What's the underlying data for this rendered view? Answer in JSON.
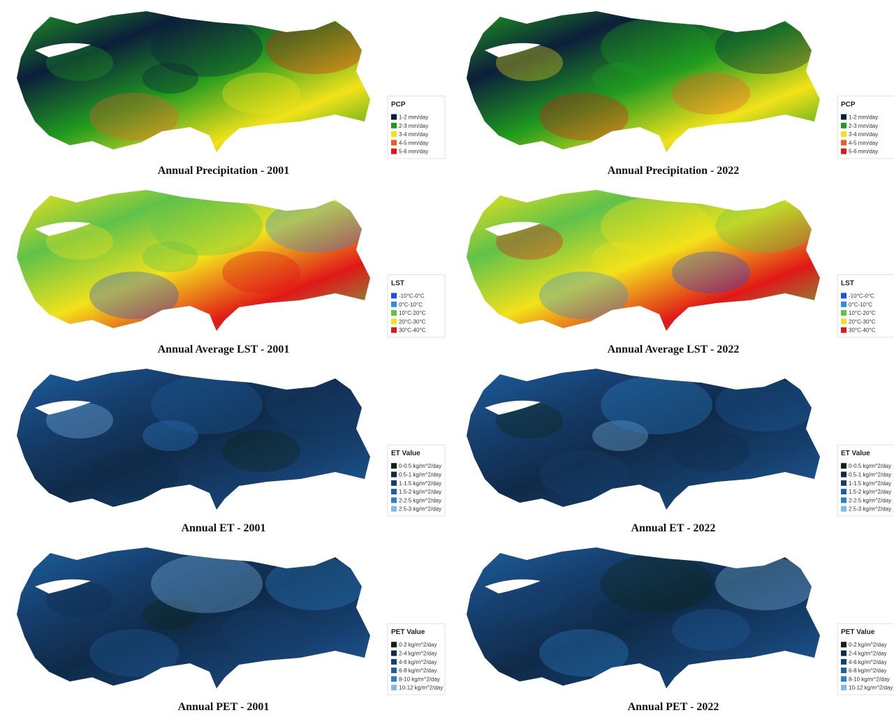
{
  "panels": [
    {
      "caption": "Annual Precipitation - 2001",
      "legend": {
        "title": "PCP",
        "items": [
          {
            "label": "1-2 mm/day",
            "color": "#0b1e3a"
          },
          {
            "label": "2-3 mm/day",
            "color": "#1f9a1f"
          },
          {
            "label": "3-4 mm/day",
            "color": "#f2e21a"
          },
          {
            "label": "4-5 mm/day",
            "color": "#f05a28"
          },
          {
            "label": "5-6 mm/day",
            "color": "#e01818"
          }
        ]
      }
    },
    {
      "caption": "Annual Precipitation - 2022",
      "legend": {
        "title": "PCP",
        "items": [
          {
            "label": "1-2 mm/day",
            "color": "#0b1e3a"
          },
          {
            "label": "2-3 mm/day",
            "color": "#1f9a1f"
          },
          {
            "label": "3-4 mm/day",
            "color": "#f2e21a"
          },
          {
            "label": "4-5 mm/day",
            "color": "#f05a28"
          },
          {
            "label": "5-6 mm/day",
            "color": "#e01818"
          }
        ]
      }
    },
    {
      "caption": "Annual Average LST - 2001",
      "legend": {
        "title": "LST",
        "items": [
          {
            "label": "-10°C-0°C",
            "color": "#1f4fe0"
          },
          {
            "label": "0°C-10°C",
            "color": "#2f8de0"
          },
          {
            "label": "10°C-20°C",
            "color": "#5fc24a"
          },
          {
            "label": "20°C-30°C",
            "color": "#f2e21a"
          },
          {
            "label": "30°C-40°C",
            "color": "#e01818"
          }
        ]
      }
    },
    {
      "caption": "Annual Average LST - 2022",
      "legend": {
        "title": "LST",
        "items": [
          {
            "label": "-10°C-0°C",
            "color": "#1f4fe0"
          },
          {
            "label": "0°C-10°C",
            "color": "#2f8de0"
          },
          {
            "label": "10°C-20°C",
            "color": "#5fc24a"
          },
          {
            "label": "20°C-30°C",
            "color": "#f2e21a"
          },
          {
            "label": "30°C-40°C",
            "color": "#e01818"
          }
        ]
      }
    },
    {
      "caption": "Annual ET - 2001",
      "legend": {
        "title": "ET Value",
        "items": [
          {
            "label": "0-0.5 kg/m^2/day",
            "color": "#0c2414"
          },
          {
            "label": "0.5-1 kg/m^2/day",
            "color": "#0f2a48"
          },
          {
            "label": "1-1.5 kg/m^2/day",
            "color": "#163f6e"
          },
          {
            "label": "1.5-2 kg/m^2/day",
            "color": "#1d5fa0"
          },
          {
            "label": "2-2.5 kg/m^2/day",
            "color": "#2a80cc"
          },
          {
            "label": "2.5-3 kg/m^2/day",
            "color": "#7fbbea"
          }
        ]
      }
    },
    {
      "caption": "Annual ET - 2022",
      "legend": {
        "title": "ET Value",
        "items": [
          {
            "label": "0-0.5 kg/m^2/day",
            "color": "#0c2414"
          },
          {
            "label": "0.5-1 kg/m^2/day",
            "color": "#0f2a48"
          },
          {
            "label": "1-1.5 kg/m^2/day",
            "color": "#163f6e"
          },
          {
            "label": "1.5-2 kg/m^2/day",
            "color": "#1d5fa0"
          },
          {
            "label": "2-2.5 kg/m^2/day",
            "color": "#2a80cc"
          },
          {
            "label": "2.5-3 kg/m^2/day",
            "color": "#7fbbea"
          }
        ]
      }
    },
    {
      "caption": "Annual PET - 2001",
      "legend": {
        "title": "PET Value",
        "items": [
          {
            "label": "0-2 kg/m^2/day",
            "color": "#0c2414"
          },
          {
            "label": "2-4 kg/m^2/day",
            "color": "#0f2a48"
          },
          {
            "label": "4-6 kg/m^2/day",
            "color": "#163f6e"
          },
          {
            "label": "6-8 kg/m^2/day",
            "color": "#1d5fa0"
          },
          {
            "label": "8-10 kg/m^2/day",
            "color": "#2a80cc"
          },
          {
            "label": "10-12 kg/m^2/day",
            "color": "#7fbbea"
          }
        ]
      }
    },
    {
      "caption": "Annual PET - 2022",
      "legend": {
        "title": "PET Value",
        "items": [
          {
            "label": "0-2 kg/m^2/day",
            "color": "#0c2414"
          },
          {
            "label": "2-4 kg/m^2/day",
            "color": "#0f2a48"
          },
          {
            "label": "4-6 kg/m^2/day",
            "color": "#163f6e"
          },
          {
            "label": "6-8 kg/m^2/day",
            "color": "#1d5fa0"
          },
          {
            "label": "8-10 kg/m^2/day",
            "color": "#2a80cc"
          },
          {
            "label": "10-12 kg/m^2/day",
            "color": "#7fbbea"
          }
        ]
      }
    }
  ]
}
